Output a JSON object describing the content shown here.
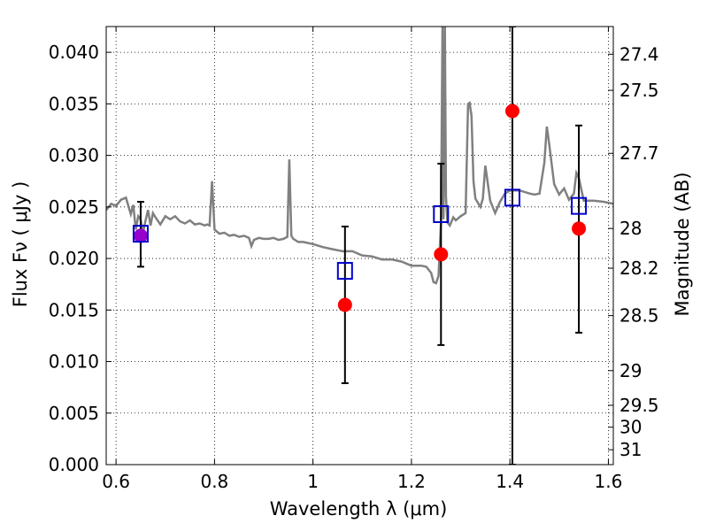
{
  "chart_data": {
    "type": "scatter",
    "xlabel": "Wavelength  λ (μm)",
    "ylabel": "Flux  Fν  ( μJy )",
    "y2label": "Magnitude (AB)",
    "xlim": [
      0.58,
      1.61
    ],
    "ylim": [
      0.0,
      0.0425
    ],
    "grid": true,
    "x_ticks": [
      0.6,
      0.8,
      1.0,
      1.2,
      1.4,
      1.6
    ],
    "x_tick_labels": [
      "0.6",
      "0.8",
      "1",
      "1.2",
      "1.4",
      "1.6"
    ],
    "y_ticks": [
      0.0,
      0.005,
      0.01,
      0.015,
      0.02,
      0.025,
      0.03,
      0.035,
      0.04
    ],
    "y_tick_labels": [
      "0.000",
      "0.005",
      "0.010",
      "0.015",
      "0.020",
      "0.025",
      "0.030",
      "0.035",
      "0.040"
    ],
    "y2_ticks": [
      27.4,
      27.5,
      27.7,
      28,
      28.2,
      28.5,
      29,
      29.5,
      30,
      31
    ],
    "y2_tick_labels": [
      "27.4",
      "27.5",
      "27.7",
      "28",
      "28.2",
      "28.5",
      "29",
      "29.5",
      "30",
      "31"
    ],
    "colors": {
      "spectrum": "#808080",
      "observed": "#ff0000",
      "model": "#0000cc",
      "errorbar": "#000000",
      "overlap": "#9900cc"
    },
    "series": [
      {
        "kind": "line",
        "x": [
          0.58,
          0.59,
          0.6,
          0.61,
          0.62,
          0.63,
          0.635,
          0.64,
          0.645,
          0.65,
          0.655,
          0.66,
          0.665,
          0.67,
          0.675,
          0.68,
          0.69,
          0.7,
          0.71,
          0.72,
          0.73,
          0.74,
          0.75,
          0.76,
          0.77,
          0.78,
          0.785,
          0.79,
          0.795,
          0.8,
          0.81,
          0.82,
          0.83,
          0.84,
          0.85,
          0.86,
          0.87,
          0.875,
          0.88,
          0.89,
          0.9,
          0.91,
          0.92,
          0.93,
          0.94,
          0.948,
          0.952,
          0.956,
          0.96,
          0.97,
          0.98,
          1.0,
          1.02,
          1.04,
          1.06,
          1.08,
          1.1,
          1.12,
          1.14,
          1.16,
          1.18,
          1.2,
          1.22,
          1.23,
          1.24,
          1.245,
          1.25,
          1.255,
          1.26,
          1.263,
          1.265,
          1.268,
          1.27,
          1.273,
          1.278,
          1.285,
          1.29,
          1.3,
          1.31,
          1.315,
          1.318,
          1.322,
          1.326,
          1.33,
          1.34,
          1.345,
          1.35,
          1.36,
          1.37,
          1.38,
          1.39,
          1.4,
          1.42,
          1.44,
          1.45,
          1.46,
          1.47,
          1.475,
          1.48,
          1.49,
          1.5,
          1.51,
          1.52,
          1.53,
          1.535,
          1.54,
          1.55,
          1.57,
          1.59,
          1.61
        ],
        "y": [
          0.0247,
          0.0253,
          0.0251,
          0.0257,
          0.0259,
          0.0243,
          0.0252,
          0.0228,
          0.0241,
          0.0238,
          0.0225,
          0.0237,
          0.0247,
          0.0232,
          0.0244,
          0.024,
          0.0233,
          0.0241,
          0.0238,
          0.0241,
          0.0236,
          0.0234,
          0.0237,
          0.0233,
          0.0234,
          0.0232,
          0.0233,
          0.0232,
          0.0275,
          0.0228,
          0.0224,
          0.0225,
          0.0222,
          0.0223,
          0.0221,
          0.0222,
          0.022,
          0.0212,
          0.0218,
          0.022,
          0.0219,
          0.0219,
          0.022,
          0.0218,
          0.0219,
          0.0221,
          0.0296,
          0.0222,
          0.0219,
          0.0216,
          0.0216,
          0.0214,
          0.0211,
          0.0209,
          0.0207,
          0.0207,
          0.0203,
          0.0202,
          0.0199,
          0.0199,
          0.0197,
          0.0193,
          0.0193,
          0.0192,
          0.0186,
          0.0177,
          0.0176,
          0.0183,
          0.0235,
          0.0425,
          0.0238,
          0.0425,
          0.026,
          0.0235,
          0.0232,
          0.024,
          0.0237,
          0.0241,
          0.0244,
          0.035,
          0.0351,
          0.0338,
          0.0275,
          0.0258,
          0.025,
          0.0258,
          0.029,
          0.0256,
          0.0244,
          0.0255,
          0.0263,
          0.0266,
          0.0266,
          0.0263,
          0.0262,
          0.0263,
          0.0293,
          0.0328,
          0.031,
          0.0272,
          0.0262,
          0.0268,
          0.0257,
          0.0263,
          0.0283,
          0.0278,
          0.0256,
          0.0256,
          0.0255,
          0.0253
        ]
      },
      {
        "kind": "observed",
        "x": [
          0.65,
          1.065,
          1.26,
          1.405,
          1.54
        ],
        "y": [
          0.0222,
          0.0155,
          0.0204,
          0.0343,
          0.0229
        ],
        "yerr_low": [
          0.0192,
          0.0079,
          0.0116,
          0.0,
          0.0128
        ],
        "yerr_high": [
          0.0255,
          0.0231,
          0.0292,
          0.0425,
          0.0329
        ]
      },
      {
        "kind": "model",
        "x": [
          0.65,
          1.065,
          1.26,
          1.405,
          1.54
        ],
        "y": [
          0.0224,
          0.0188,
          0.0243,
          0.0259,
          0.0251
        ]
      }
    ]
  }
}
